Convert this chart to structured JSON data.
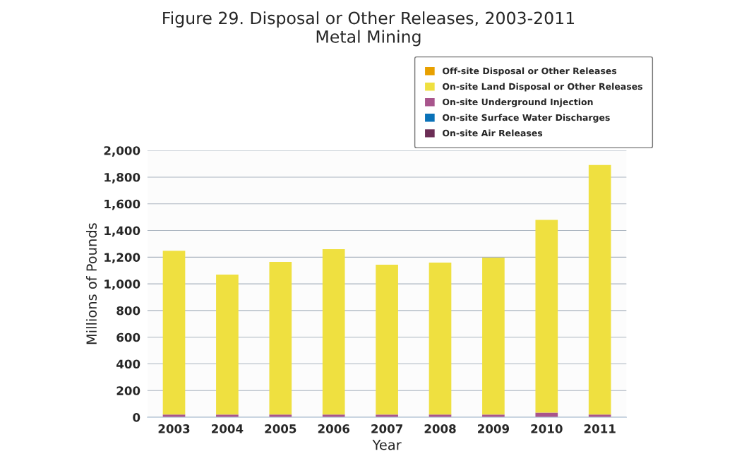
{
  "chart_data": {
    "type": "bar",
    "title": "Figure 29. Disposal or Other Releases, 2003-2011\nMetal Mining",
    "xlabel": "Year",
    "ylabel": "Millions of Pounds",
    "stacked": true,
    "grid": "y",
    "legend": "top right",
    "categories": [
      "2003",
      "2004",
      "2005",
      "2006",
      "2007",
      "2008",
      "2009",
      "2010",
      "2011"
    ],
    "series": [
      {
        "name": "On-site Air Releases",
        "color": "#6b2d55",
        "values": [
          null,
          null,
          null,
          null,
          null,
          null,
          null,
          null,
          null
        ]
      },
      {
        "name": "On-site Surface Water Discharges",
        "color": "#0a72b8",
        "values": [
          null,
          null,
          null,
          null,
          null,
          null,
          null,
          null,
          null
        ]
      },
      {
        "name": "On-site Underground Injection",
        "color": "#a8558c",
        "values": [
          20,
          20,
          20,
          20,
          20,
          20,
          20,
          35,
          20
        ]
      },
      {
        "name": "On-site Land Disposal or Other Releases",
        "color": "#efe040",
        "values": [
          1228,
          1050,
          1145,
          1240,
          1124,
          1140,
          1177,
          1445,
          1871
        ]
      },
      {
        "name": "Off-site Disposal or Other Releases",
        "color": "#e8a000",
        "values": [
          null,
          null,
          null,
          null,
          null,
          null,
          null,
          null,
          null
        ]
      }
    ],
    "ylim": [
      0,
      2000
    ],
    "yticks": [
      {
        "value": 0,
        "label": "0"
      },
      {
        "value": 200,
        "label": "200"
      },
      {
        "value": 400,
        "label": "400"
      },
      {
        "value": 600,
        "label": "600"
      },
      {
        "value": 800,
        "label": "800"
      },
      {
        "value": 1000,
        "label": "1,000"
      },
      {
        "value": 1200,
        "label": "1,200"
      },
      {
        "value": 1400,
        "label": "1,400"
      },
      {
        "value": 1600,
        "label": "1,600"
      },
      {
        "value": 1800,
        "label": "1,800"
      },
      {
        "value": 2000,
        "label": "2,000"
      }
    ]
  }
}
